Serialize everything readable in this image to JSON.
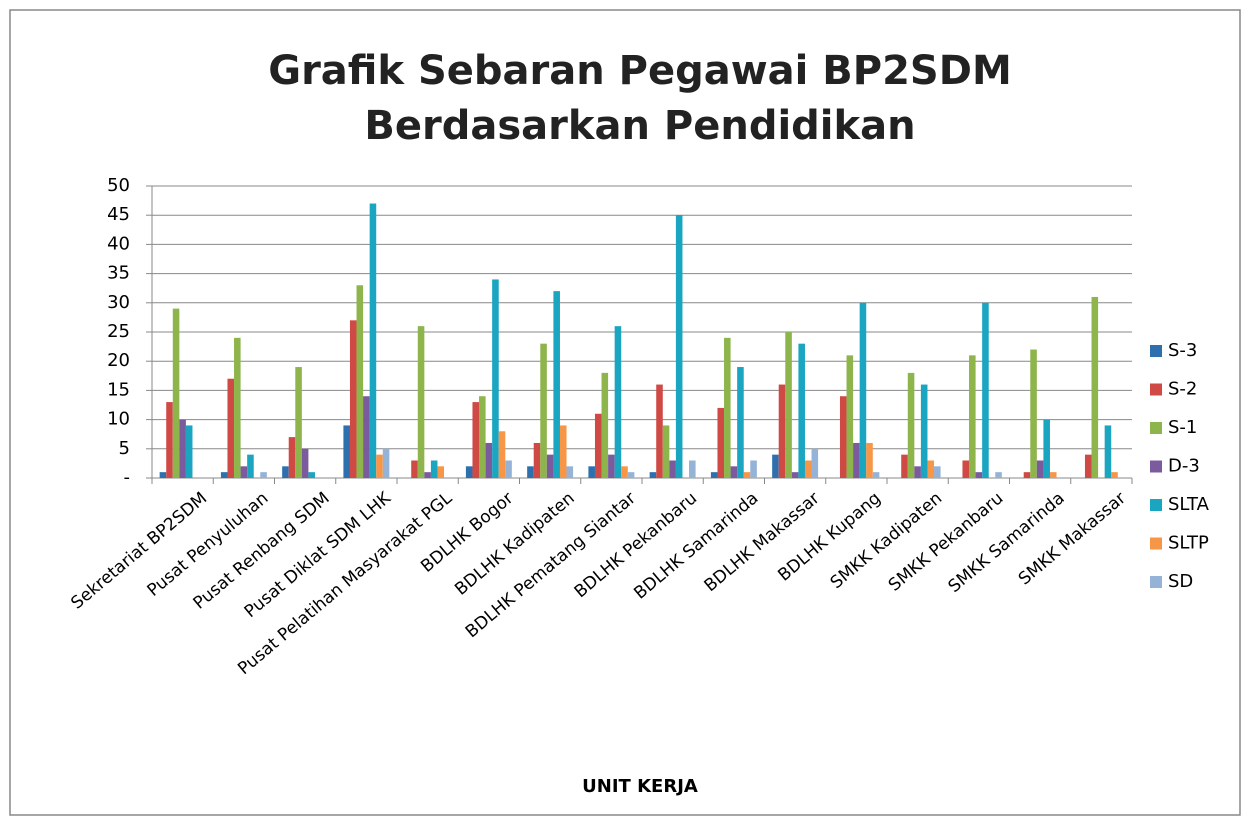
{
  "chart_data": {
    "type": "bar",
    "title": "Grafik Sebaran Pegawai BP2SDM",
    "subtitle": "Berdasarkan Pendidikan",
    "x_label": "UNIT KERJA",
    "categories": [
      "Sekretariat BP2SDM",
      "Pusat Penyuluhan",
      "Pusat Renbang SDM",
      "Pusat Diklat SDM LHK",
      "Pusat Pelatihan Masyarakat PGL",
      "BDLHK Bogor",
      "BDLHK Kadipaten",
      "BDLHK Pematang Siantar",
      "BDLHK Pekanbaru",
      "BDLHK Samarinda",
      "BDLHK Makassar",
      "BDLHK Kupang",
      "SMKK Kadipaten",
      "SMKK Pekanbaru",
      "SMKK Samarinda",
      "SMKK Makassar"
    ],
    "series": [
      {
        "name": "S-3",
        "color": "#2e6fad",
        "values": [
          1,
          1,
          2,
          9,
          0,
          2,
          2,
          2,
          1,
          1,
          4,
          0,
          0,
          0,
          0,
          0
        ]
      },
      {
        "name": "S-2",
        "color": "#d04a45",
        "values": [
          13,
          17,
          7,
          27,
          3,
          13,
          6,
          11,
          16,
          12,
          16,
          14,
          4,
          3,
          1,
          4
        ]
      },
      {
        "name": "S-1",
        "color": "#8db54b",
        "values": [
          29,
          24,
          19,
          33,
          26,
          14,
          23,
          18,
          9,
          24,
          25,
          21,
          18,
          21,
          22,
          31
        ]
      },
      {
        "name": "D-3",
        "color": "#7b5b9e",
        "values": [
          10,
          2,
          5,
          14,
          1,
          6,
          4,
          4,
          3,
          2,
          1,
          6,
          2,
          1,
          3,
          0
        ]
      },
      {
        "name": "SLTA",
        "color": "#1aa5c0",
        "values": [
          9,
          4,
          1,
          47,
          3,
          34,
          32,
          26,
          45,
          19,
          23,
          30,
          16,
          30,
          10,
          9
        ]
      },
      {
        "name": "SLTP",
        "color": "#f79646",
        "values": [
          0,
          0,
          0,
          4,
          2,
          8,
          9,
          2,
          0,
          1,
          3,
          6,
          3,
          0,
          1,
          1
        ]
      },
      {
        "name": "SD",
        "color": "#95b3d7",
        "values": [
          0,
          1,
          0,
          5,
          0,
          3,
          2,
          1,
          3,
          3,
          5,
          1,
          2,
          1,
          0,
          0
        ]
      }
    ],
    "ylim": [
      0,
      50
    ],
    "yticks": [
      {
        "value": 0,
        "label": "-"
      },
      5,
      10,
      15,
      20,
      25,
      30,
      35,
      40,
      45,
      50
    ],
    "grid": true,
    "legend": "right"
  }
}
